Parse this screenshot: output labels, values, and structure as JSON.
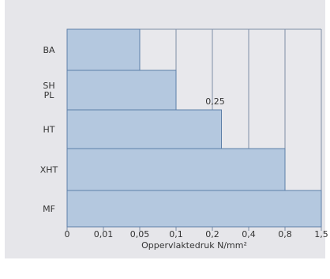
{
  "chart_data": {
    "type": "bar",
    "orientation": "horizontal",
    "x_scale": "categorical-ordinal",
    "categories": [
      "BA",
      "SH\nPL",
      "HT",
      "XHT",
      "MF"
    ],
    "values": [
      0.05,
      0.1,
      0.25,
      0.8,
      1.5
    ],
    "x_ticks": [
      "0",
      "0,01",
      "0,05",
      "0,1",
      "0,2",
      "0,4",
      "0,8",
      "1,5"
    ],
    "xlabel": "Oppervlaktedruk N/mm²",
    "annotations": [
      {
        "category": "HT",
        "text": "0,25"
      }
    ],
    "grid": true,
    "legend": "none"
  },
  "colors": {
    "panel_background": "#e6e6ea",
    "plot_background": "#e8e8ec",
    "bar_fill": "#b4c8df",
    "bar_stroke": "#5d7fa8",
    "grid": "#7e8ea6",
    "text": "#333333"
  }
}
